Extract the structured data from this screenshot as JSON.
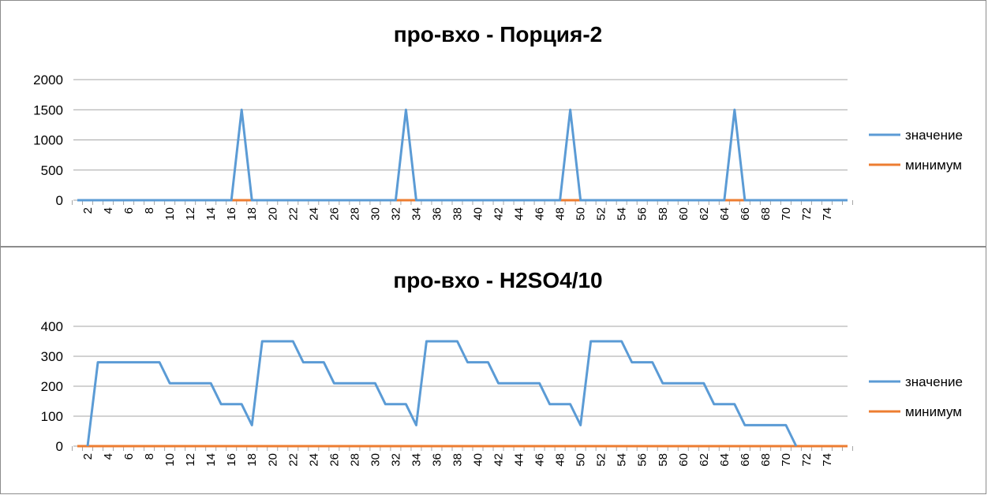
{
  "colors": {
    "series_value": "#5B9BD5",
    "series_min": "#ED7D31",
    "grid": "#A6A6A6"
  },
  "chart_data": [
    {
      "type": "line",
      "title": "про-вхо - Порция-2",
      "xlabel": "",
      "ylabel": "",
      "ylim": [
        0,
        2000
      ],
      "yticks": [
        0,
        500,
        1000,
        1500,
        2000
      ],
      "x": [
        1,
        2,
        3,
        4,
        5,
        6,
        7,
        8,
        9,
        10,
        11,
        12,
        13,
        14,
        15,
        16,
        17,
        18,
        19,
        20,
        21,
        22,
        23,
        24,
        25,
        26,
        27,
        28,
        29,
        30,
        31,
        32,
        33,
        34,
        35,
        36,
        37,
        38,
        39,
        40,
        41,
        42,
        43,
        44,
        45,
        46,
        47,
        48,
        49,
        50,
        51,
        52,
        53,
        54,
        55,
        56,
        57,
        58,
        59,
        60,
        61,
        62,
        63,
        64,
        65,
        66,
        67,
        68,
        69,
        70,
        71,
        72,
        73,
        74,
        75,
        76
      ],
      "xtick_labels": [
        "2",
        "4",
        "6",
        "8",
        "10",
        "12",
        "14",
        "16",
        "18",
        "20",
        "22",
        "24",
        "26",
        "28",
        "30",
        "32",
        "34",
        "36",
        "38",
        "40",
        "42",
        "44",
        "46",
        "48",
        "50",
        "52",
        "54",
        "56",
        "58",
        "60",
        "62",
        "64",
        "66",
        "68",
        "70",
        "72",
        "74"
      ],
      "grid": true,
      "legend": "right",
      "series": [
        {
          "name": "значение",
          "values": [
            0,
            0,
            0,
            0,
            0,
            0,
            0,
            0,
            0,
            0,
            0,
            0,
            0,
            0,
            0,
            0,
            1500,
            0,
            0,
            0,
            0,
            0,
            0,
            0,
            0,
            0,
            0,
            0,
            0,
            0,
            0,
            0,
            1500,
            0,
            0,
            0,
            0,
            0,
            0,
            0,
            0,
            0,
            0,
            0,
            0,
            0,
            0,
            0,
            1500,
            0,
            0,
            0,
            0,
            0,
            0,
            0,
            0,
            0,
            0,
            0,
            0,
            0,
            0,
            0,
            1500,
            0,
            0,
            0,
            0,
            0,
            0,
            0,
            0,
            0,
            0,
            0
          ]
        },
        {
          "name": "минимум",
          "values": [
            0,
            0,
            0,
            0,
            0,
            0,
            0,
            0,
            0,
            0,
            0,
            0,
            0,
            0,
            0,
            0,
            0,
            0,
            0,
            0,
            0,
            0,
            0,
            0,
            0,
            0,
            0,
            0,
            0,
            0,
            0,
            0,
            0,
            0,
            0,
            0,
            0,
            0,
            0,
            0,
            0,
            0,
            0,
            0,
            0,
            0,
            0,
            0,
            0,
            0,
            0,
            0,
            0,
            0,
            0,
            0,
            0,
            0,
            0,
            0,
            0,
            0,
            0,
            0,
            0,
            0,
            0,
            0,
            0,
            0,
            0,
            0,
            0,
            0,
            0,
            0
          ]
        }
      ]
    },
    {
      "type": "line",
      "title": "про-вхо - H2SO4/10",
      "xlabel": "",
      "ylabel": "",
      "ylim": [
        0,
        400
      ],
      "yticks": [
        0,
        100,
        200,
        300,
        400
      ],
      "x": [
        1,
        2,
        3,
        4,
        5,
        6,
        7,
        8,
        9,
        10,
        11,
        12,
        13,
        14,
        15,
        16,
        17,
        18,
        19,
        20,
        21,
        22,
        23,
        24,
        25,
        26,
        27,
        28,
        29,
        30,
        31,
        32,
        33,
        34,
        35,
        36,
        37,
        38,
        39,
        40,
        41,
        42,
        43,
        44,
        45,
        46,
        47,
        48,
        49,
        50,
        51,
        52,
        53,
        54,
        55,
        56,
        57,
        58,
        59,
        60,
        61,
        62,
        63,
        64,
        65,
        66,
        67,
        68,
        69,
        70,
        71,
        72,
        73,
        74,
        75,
        76
      ],
      "xtick_labels": [
        "2",
        "4",
        "6",
        "8",
        "10",
        "12",
        "14",
        "16",
        "18",
        "20",
        "22",
        "24",
        "26",
        "28",
        "30",
        "32",
        "34",
        "36",
        "38",
        "40",
        "42",
        "44",
        "46",
        "48",
        "50",
        "52",
        "54",
        "56",
        "58",
        "60",
        "62",
        "64",
        "66",
        "68",
        "70",
        "72",
        "74"
      ],
      "grid": true,
      "legend": "right",
      "series": [
        {
          "name": "значение",
          "values": [
            null,
            0,
            280,
            280,
            280,
            280,
            280,
            280,
            280,
            210,
            210,
            210,
            210,
            210,
            140,
            140,
            140,
            70,
            350,
            350,
            350,
            350,
            280,
            280,
            280,
            210,
            210,
            210,
            210,
            210,
            140,
            140,
            140,
            70,
            350,
            350,
            350,
            350,
            280,
            280,
            280,
            210,
            210,
            210,
            210,
            210,
            140,
            140,
            140,
            70,
            350,
            350,
            350,
            350,
            280,
            280,
            280,
            210,
            210,
            210,
            210,
            210,
            140,
            140,
            140,
            70,
            70,
            70,
            70,
            70,
            0,
            null,
            null,
            null,
            null,
            null
          ]
        },
        {
          "name": "минимум",
          "values": [
            0,
            0,
            0,
            0,
            0,
            0,
            0,
            0,
            0,
            0,
            0,
            0,
            0,
            0,
            0,
            0,
            0,
            0,
            0,
            0,
            0,
            0,
            0,
            0,
            0,
            0,
            0,
            0,
            0,
            0,
            0,
            0,
            0,
            0,
            0,
            0,
            0,
            0,
            0,
            0,
            0,
            0,
            0,
            0,
            0,
            0,
            0,
            0,
            0,
            0,
            0,
            0,
            0,
            0,
            0,
            0,
            0,
            0,
            0,
            0,
            0,
            0,
            0,
            0,
            0,
            0,
            0,
            0,
            0,
            0,
            0,
            0,
            0,
            0,
            0,
            0
          ]
        }
      ]
    }
  ]
}
